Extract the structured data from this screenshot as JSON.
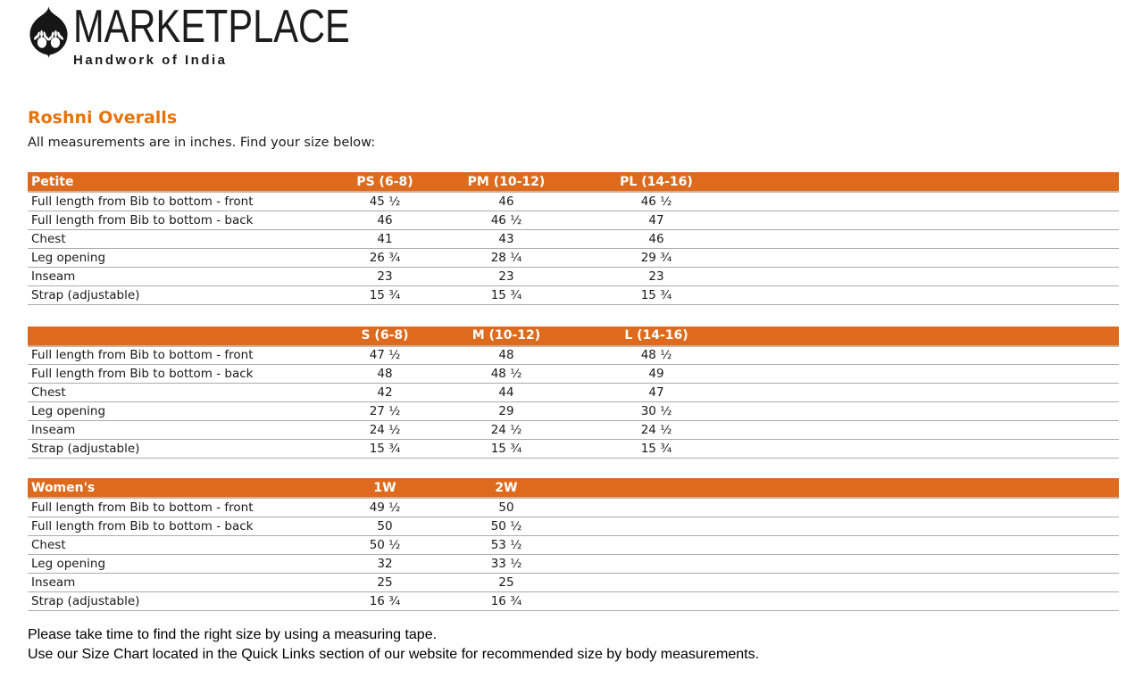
{
  "logo": {
    "brand": "MARKETPLACE",
    "tagline": "Handwork of India",
    "icon": "leaf-hands-icon"
  },
  "page": {
    "title": "Roshni Overalls",
    "subtitle": "All measurements are in inches. Find your size below:",
    "footer_lines": [
      "Please take time to find the right size by using a measuring tape.",
      "Use our Size Chart located in the Quick Links section of our website for recommended size by body measurements."
    ]
  },
  "colors": {
    "accent_orange": "#de6b1d",
    "title_orange": "#e8730b",
    "row_divider": "#ababab"
  },
  "tables": [
    {
      "id": "petite",
      "header": [
        "Petite",
        "PS (6-8)",
        "PM (10-12)",
        "PL (14-16)"
      ],
      "rows": [
        [
          "Full length from Bib to bottom - front",
          "45 ½",
          "46",
          "46 ½"
        ],
        [
          "Full length from Bib to bottom - back",
          "46",
          "46 ½",
          "47"
        ],
        [
          "Chest",
          "41",
          "43",
          "46"
        ],
        [
          "Leg opening",
          "26 ¾",
          "28 ¼",
          "29 ¾"
        ],
        [
          "Inseam",
          "23",
          "23",
          "23"
        ],
        [
          "Strap (adjustable)",
          "15 ¾",
          "15 ¾",
          "15 ¾"
        ]
      ]
    },
    {
      "id": "regular",
      "header": [
        "",
        "S (6-8)",
        "M (10-12)",
        "L (14-16)"
      ],
      "rows": [
        [
          "Full length from Bib to bottom - front",
          "47 ½",
          "48",
          "48 ½"
        ],
        [
          "Full length from Bib to bottom - back",
          "48",
          "48 ½",
          "49"
        ],
        [
          "Chest",
          "42",
          "44",
          "47"
        ],
        [
          "Leg opening",
          "27 ½",
          "29",
          "30 ½"
        ],
        [
          "Inseam",
          "24 ½",
          "24 ½",
          "24 ½"
        ],
        [
          "Strap (adjustable)",
          "15 ¾",
          "15 ¾",
          "15 ¾"
        ]
      ]
    },
    {
      "id": "womens",
      "header": [
        "Women's",
        "1W",
        "2W",
        ""
      ],
      "rows": [
        [
          "Full length from Bib to bottom - front",
          "49 ½",
          "50",
          ""
        ],
        [
          "Full length from Bib to bottom - back",
          "50",
          "50 ½",
          ""
        ],
        [
          "Chest",
          "50 ½",
          "53 ½",
          ""
        ],
        [
          "Leg opening",
          "32",
          "33 ½",
          ""
        ],
        [
          "Inseam",
          "25",
          "25",
          ""
        ],
        [
          "Strap (adjustable)",
          "16 ¾",
          "16 ¾",
          ""
        ]
      ]
    }
  ]
}
